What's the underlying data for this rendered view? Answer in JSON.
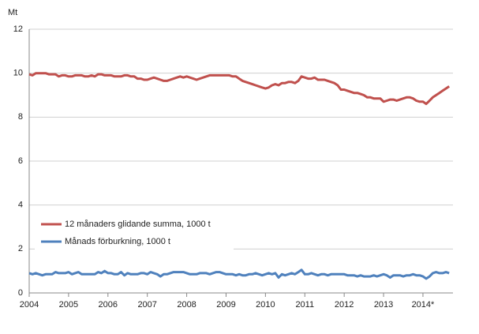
{
  "chart_data": {
    "type": "line",
    "y_label": "Mt",
    "categories": [
      "2004",
      null,
      null,
      null,
      null,
      null,
      null,
      null,
      null,
      null,
      null,
      null,
      "2005",
      null,
      null,
      null,
      null,
      null,
      null,
      null,
      null,
      null,
      null,
      null,
      "2006",
      null,
      null,
      null,
      null,
      null,
      null,
      null,
      null,
      null,
      null,
      null,
      "2007",
      null,
      null,
      null,
      null,
      null,
      null,
      null,
      null,
      null,
      null,
      null,
      "2008",
      null,
      null,
      null,
      null,
      null,
      null,
      null,
      null,
      null,
      null,
      null,
      "2009",
      null,
      null,
      null,
      null,
      null,
      null,
      null,
      null,
      null,
      null,
      null,
      "2010",
      null,
      null,
      null,
      null,
      null,
      null,
      null,
      null,
      null,
      null,
      null,
      "2011",
      null,
      null,
      null,
      null,
      null,
      null,
      null,
      null,
      null,
      null,
      null,
      "2012",
      null,
      null,
      null,
      null,
      null,
      null,
      null,
      null,
      null,
      null,
      null,
      "2013",
      null,
      null,
      null,
      null,
      null,
      null,
      null,
      null,
      null,
      null,
      null,
      "2014*",
      null,
      null,
      null,
      null,
      null,
      null,
      null,
      null
    ],
    "series": [
      {
        "name": "12 månaders glidande summa, 1000 t",
        "color": "#c0504d",
        "values": [
          9.95,
          9.9,
          10.0,
          10.0,
          10.0,
          10.0,
          9.95,
          9.95,
          9.95,
          9.85,
          9.9,
          9.9,
          9.85,
          9.85,
          9.9,
          9.9,
          9.9,
          9.85,
          9.85,
          9.9,
          9.85,
          9.95,
          9.95,
          9.9,
          9.9,
          9.9,
          9.85,
          9.85,
          9.85,
          9.9,
          9.9,
          9.85,
          9.85,
          9.75,
          9.75,
          9.7,
          9.7,
          9.75,
          9.8,
          9.75,
          9.7,
          9.65,
          9.65,
          9.7,
          9.75,
          9.8,
          9.85,
          9.8,
          9.85,
          9.8,
          9.75,
          9.7,
          9.75,
          9.8,
          9.85,
          9.9,
          9.9,
          9.9,
          9.9,
          9.9,
          9.9,
          9.9,
          9.85,
          9.85,
          9.75,
          9.65,
          9.6,
          9.55,
          9.5,
          9.45,
          9.4,
          9.35,
          9.3,
          9.35,
          9.45,
          9.5,
          9.45,
          9.55,
          9.55,
          9.6,
          9.6,
          9.55,
          9.65,
          9.85,
          9.8,
          9.75,
          9.75,
          9.8,
          9.7,
          9.7,
          9.7,
          9.65,
          9.6,
          9.55,
          9.45,
          9.25,
          9.25,
          9.2,
          9.15,
          9.1,
          9.1,
          9.05,
          9.0,
          8.9,
          8.9,
          8.85,
          8.85,
          8.85,
          8.7,
          8.75,
          8.8,
          8.8,
          8.75,
          8.8,
          8.85,
          8.9,
          8.9,
          8.85,
          8.75,
          8.7,
          8.7,
          8.6,
          8.75,
          8.9,
          9.0,
          9.1,
          9.2,
          9.3,
          9.4
        ]
      },
      {
        "name": "Månads förburkning, 1000 t",
        "color": "#4f81bd",
        "values": [
          0.9,
          0.85,
          0.9,
          0.85,
          0.8,
          0.85,
          0.85,
          0.85,
          0.95,
          0.9,
          0.9,
          0.9,
          0.95,
          0.85,
          0.9,
          0.95,
          0.85,
          0.85,
          0.85,
          0.85,
          0.85,
          0.95,
          0.9,
          1.0,
          0.9,
          0.9,
          0.85,
          0.85,
          0.95,
          0.8,
          0.9,
          0.85,
          0.85,
          0.85,
          0.9,
          0.9,
          0.85,
          0.95,
          0.9,
          0.85,
          0.75,
          0.85,
          0.85,
          0.9,
          0.95,
          0.95,
          0.95,
          0.95,
          0.9,
          0.85,
          0.85,
          0.85,
          0.9,
          0.9,
          0.9,
          0.85,
          0.9,
          0.95,
          0.95,
          0.9,
          0.85,
          0.85,
          0.85,
          0.8,
          0.85,
          0.8,
          0.8,
          0.85,
          0.85,
          0.9,
          0.85,
          0.8,
          0.85,
          0.9,
          0.85,
          0.9,
          0.7,
          0.85,
          0.8,
          0.85,
          0.9,
          0.85,
          0.95,
          1.05,
          0.85,
          0.85,
          0.9,
          0.85,
          0.8,
          0.85,
          0.85,
          0.8,
          0.85,
          0.85,
          0.85,
          0.85,
          0.85,
          0.8,
          0.8,
          0.8,
          0.75,
          0.8,
          0.75,
          0.75,
          0.75,
          0.8,
          0.75,
          0.8,
          0.85,
          0.8,
          0.7,
          0.8,
          0.8,
          0.8,
          0.75,
          0.8,
          0.8,
          0.85,
          0.8,
          0.8,
          0.75,
          0.65,
          0.75,
          0.9,
          0.95,
          0.9,
          0.9,
          0.95,
          0.9
        ]
      }
    ],
    "ylim": [
      0,
      12
    ],
    "yticks": [
      0,
      2,
      4,
      6,
      8,
      10,
      12
    ],
    "grid": true
  }
}
